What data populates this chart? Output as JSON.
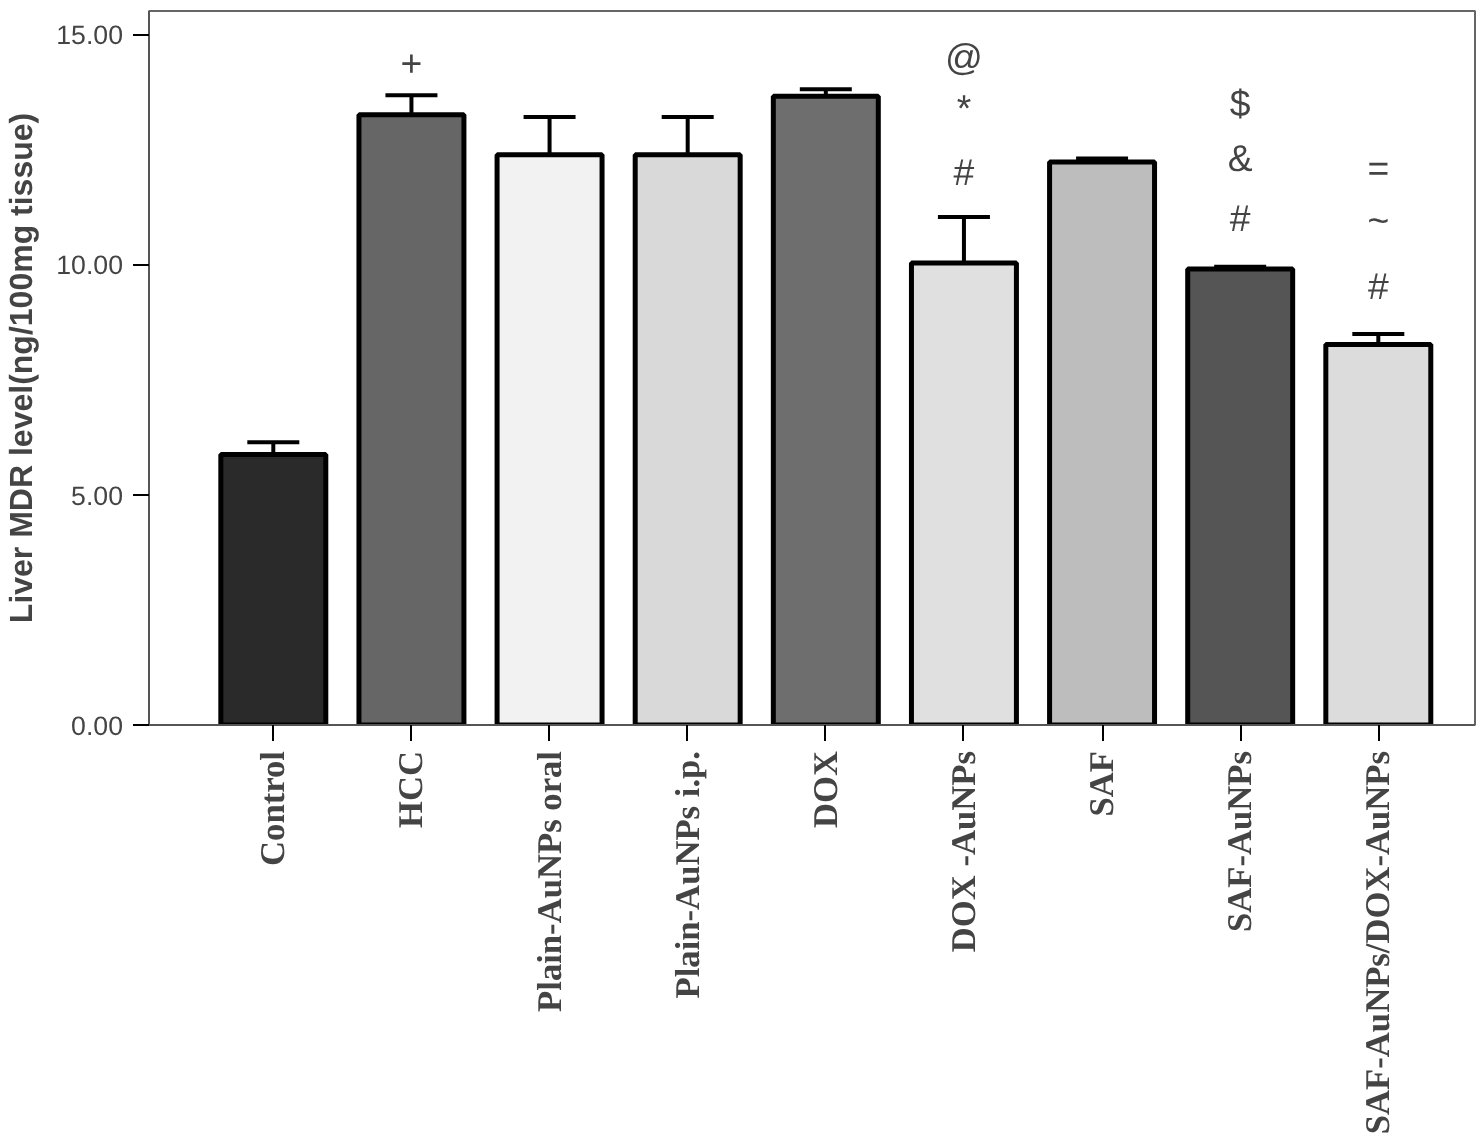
{
  "chart_data": {
    "type": "bar",
    "ylabel": "Liver MDR level(ng/100mg tissue)",
    "categories": [
      "Control",
      "HCC",
      "Plain-AuNPs oral",
      "Plain-AuNPs i.p.",
      "DOX",
      "DOX -AuNPs",
      "SAF",
      "SAF-AuNPs",
      "SAF-AuNPs/DOX-AuNPs"
    ],
    "values": [
      5.87,
      13.25,
      12.38,
      12.38,
      13.65,
      10.03,
      12.22,
      9.9,
      8.26
    ],
    "errors": [
      0.27,
      0.42,
      0.82,
      0.82,
      0.15,
      1.0,
      0.08,
      0.05,
      0.23
    ],
    "colors": [
      "#2a2a2a",
      "#666666",
      "#f2f2f2",
      "#d9d9d9",
      "#6e6e6e",
      "#e0e0e0",
      "#bdbdbd",
      "#555555",
      "#dcdcdc"
    ],
    "ylim": [
      0,
      15.5
    ],
    "yticks": [
      {
        "value": 0,
        "label": "0.00"
      },
      {
        "value": 5,
        "label": "5.00"
      },
      {
        "value": 10,
        "label": "10.00"
      },
      {
        "value": 15,
        "label": "15.00"
      }
    ],
    "grid": false,
    "annotations": [
      "+",
      "@",
      "*",
      "#",
      "$",
      "&",
      "#",
      "=",
      "~",
      "#"
    ]
  }
}
